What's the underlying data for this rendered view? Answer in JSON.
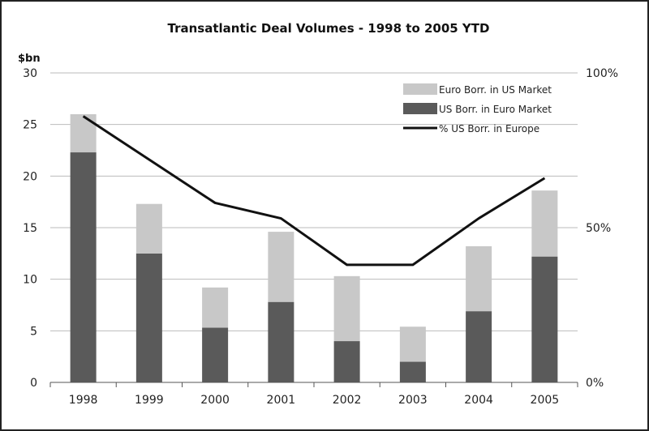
{
  "chart_data": {
    "type": "bar",
    "stacked": true,
    "title": "Transatlantic Deal Volumes - 1998 to 2005 YTD",
    "ylabel": "$bn",
    "categories": [
      "1998",
      "1999",
      "2000",
      "2001",
      "2002",
      "2003",
      "2004",
      "2005"
    ],
    "ylim": [
      0,
      30
    ],
    "yticks": [
      "0",
      "5",
      "10",
      "15",
      "20",
      "25",
      "30"
    ],
    "y2lim": [
      0,
      100
    ],
    "y2ticks": [
      "0%",
      "50%",
      "100%"
    ],
    "legend_position": "top-right",
    "series": [
      {
        "name": "US Borr. in Euro Market",
        "kind": "bar",
        "color": "#5a5a5a",
        "values": [
          22.3,
          12.5,
          5.3,
          7.8,
          4.0,
          2.0,
          6.9,
          12.2
        ]
      },
      {
        "name": "Euro Borr. in US Market",
        "kind": "bar",
        "color": "#c8c8c8",
        "values": [
          3.7,
          4.8,
          3.9,
          6.8,
          6.3,
          3.4,
          6.3,
          6.4
        ]
      },
      {
        "name": "% US Borr. in Europe",
        "kind": "line",
        "axis": "right",
        "color": "#111111",
        "values": [
          86,
          72,
          58,
          53,
          38,
          38,
          53,
          66
        ]
      }
    ],
    "legend": [
      {
        "label": "Euro Borr. in US Market",
        "swatch": "light"
      },
      {
        "label": "US Borr. in Euro Market",
        "swatch": "dark"
      },
      {
        "label": "% US Borr. in Europe",
        "swatch": "line"
      }
    ]
  }
}
